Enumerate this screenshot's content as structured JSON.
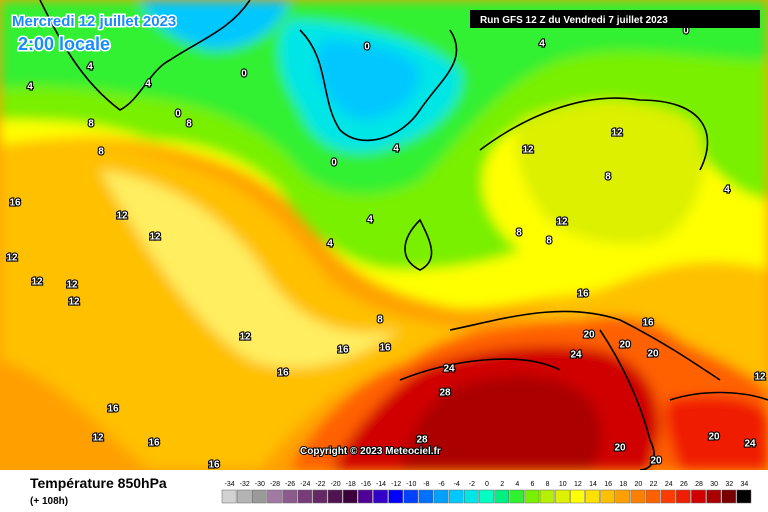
{
  "header": {
    "date": "Mercredi 12 juillet 2023",
    "time": "2:00 locale",
    "run": "Run GFS 12 Z du Vendredi 7 juillet 2023"
  },
  "copyright": "Copyright © 2023 Meteociel.fr",
  "legend": {
    "title": "Température 850hPa",
    "subtitle": "(+ 108h)",
    "labels": [
      -34,
      -32,
      -30,
      -28,
      -26,
      -24,
      -22,
      -20,
      -18,
      -16,
      -14,
      -12,
      -10,
      -8,
      -6,
      -4,
      -2,
      0,
      2,
      4,
      6,
      8,
      10,
      12,
      14,
      16,
      18,
      20,
      22,
      24,
      26,
      28,
      30,
      32,
      34
    ],
    "colors": [
      "#d2d2d2",
      "#b4b4b4",
      "#9a9a9a",
      "#a07aa0",
      "#8c5a8c",
      "#783c78",
      "#642864",
      "#501450",
      "#3c003c",
      "#500096",
      "#3200c8",
      "#0000ff",
      "#0040ff",
      "#0070ff",
      "#00a0ff",
      "#00c8ff",
      "#00e6e6",
      "#00ffc0",
      "#00f080",
      "#30f030",
      "#78f000",
      "#b4f000",
      "#dcf000",
      "#ffff00",
      "#ffe000",
      "#ffc000",
      "#ffa000",
      "#ff8000",
      "#ff6000",
      "#ff3c00",
      "#f01e00",
      "#d00000",
      "#aa0000",
      "#780000",
      "#000000"
    ]
  },
  "contour_labels": [
    16,
    12,
    12,
    12,
    12,
    12,
    16,
    16,
    16,
    16,
    16,
    16,
    12,
    12,
    12,
    8,
    8,
    4,
    4,
    4,
    0,
    0,
    0,
    0,
    4,
    4,
    4,
    8,
    8,
    8,
    12,
    12,
    12,
    8,
    8,
    16,
    16,
    20,
    20,
    20,
    24,
    24,
    28,
    28,
    20,
    20,
    20,
    24,
    12,
    4,
    0,
    4
  ]
}
